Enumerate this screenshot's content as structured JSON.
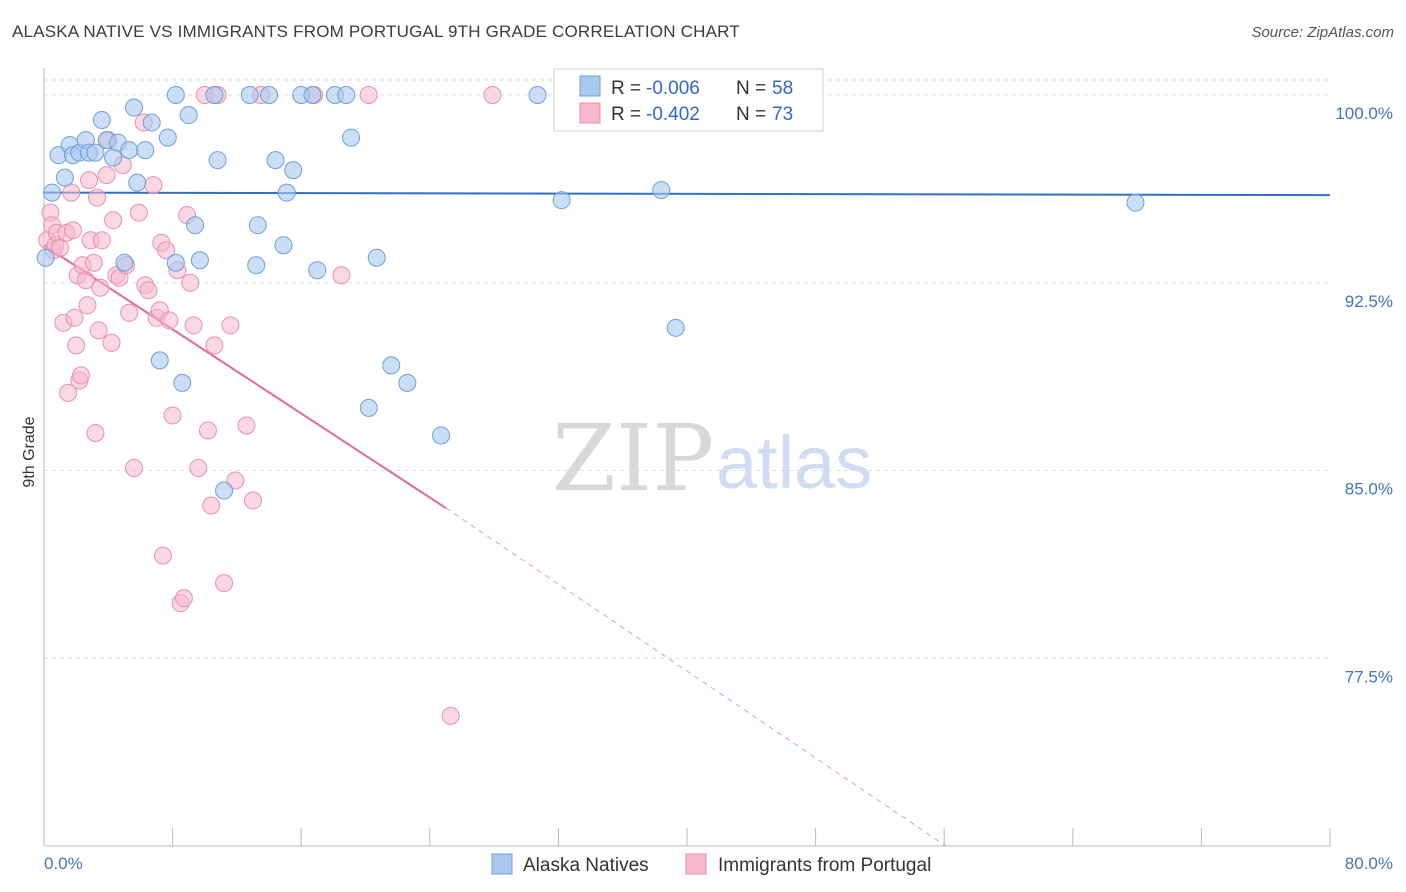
{
  "header": {
    "title": "ALASKA NATIVE VS IMMIGRANTS FROM PORTUGAL 9TH GRADE CORRELATION CHART",
    "source": "Source: ZipAtlas.com"
  },
  "watermark": {
    "zip": "ZIP",
    "atlas": "atlas"
  },
  "stats_legend": [
    {
      "r_label": "R = ",
      "r_value": "-0.006",
      "n_label": "N = ",
      "n_value": "58"
    },
    {
      "r_label": "R = ",
      "r_value": "-0.402",
      "n_label": "N = ",
      "n_value": "73"
    }
  ],
  "chart_data": {
    "type": "scatter",
    "ylabel": "9th Grade",
    "xlabel": "",
    "xlim": [
      0,
      80
    ],
    "ylim": [
      70,
      100.6
    ],
    "x_tick_labels": [
      "0.0%",
      "80.0%"
    ],
    "y_ticks": [
      77.5,
      85.0,
      92.5,
      100.0
    ],
    "y_tick_labels": [
      "77.5%",
      "85.0%",
      "92.5%",
      "100.0%"
    ],
    "grid": true,
    "legend_position": "bottom-center",
    "colors": {
      "blue_fill": "#aac8f0",
      "blue_stroke": "#6f9fd8",
      "blue_line": "#2f6fcc",
      "pink_fill": "#f6b8cc",
      "pink_stroke": "#e891ad",
      "pink_line": "#e46a97"
    },
    "series": [
      {
        "name": "Alaska Natives",
        "color": "#aac8f0",
        "trend": {
          "x": [
            0,
            80
          ],
          "y": [
            96.1,
            96.0
          ]
        },
        "points": [
          [
            0.1,
            93.5
          ],
          [
            0.5,
            96.1
          ],
          [
            0.9,
            97.6
          ],
          [
            1.3,
            96.7
          ],
          [
            1.6,
            98.0
          ],
          [
            1.8,
            97.6
          ],
          [
            2.2,
            97.7
          ],
          [
            2.6,
            98.2
          ],
          [
            2.8,
            97.7
          ],
          [
            3.2,
            97.7
          ],
          [
            3.6,
            99.0
          ],
          [
            3.9,
            98.2
          ],
          [
            4.3,
            97.5
          ],
          [
            4.6,
            98.1
          ],
          [
            5.0,
            93.3
          ],
          [
            5.3,
            97.8
          ],
          [
            5.6,
            99.5
          ],
          [
            5.8,
            96.5
          ],
          [
            6.3,
            97.8
          ],
          [
            6.7,
            98.9
          ],
          [
            7.2,
            89.4
          ],
          [
            7.7,
            98.3
          ],
          [
            8.2,
            100.0
          ],
          [
            8.2,
            93.3
          ],
          [
            8.6,
            88.5
          ],
          [
            9.0,
            99.2
          ],
          [
            9.4,
            94.8
          ],
          [
            9.7,
            93.4
          ],
          [
            10.6,
            100.0
          ],
          [
            10.8,
            97.4
          ],
          [
            11.2,
            84.2
          ],
          [
            12.8,
            100.0
          ],
          [
            13.2,
            93.2
          ],
          [
            13.3,
            94.8
          ],
          [
            14.0,
            100.0
          ],
          [
            14.4,
            97.4
          ],
          [
            14.9,
            94.0
          ],
          [
            15.1,
            96.1
          ],
          [
            15.5,
            97.0
          ],
          [
            16.0,
            100.0
          ],
          [
            16.7,
            100.0
          ],
          [
            17.0,
            93.0
          ],
          [
            18.1,
            100.0
          ],
          [
            18.8,
            100.0
          ],
          [
            19.1,
            98.3
          ],
          [
            20.2,
            87.5
          ],
          [
            20.7,
            93.5
          ],
          [
            21.6,
            89.2
          ],
          [
            22.6,
            88.5
          ],
          [
            24.7,
            86.4
          ],
          [
            30.7,
            100.0
          ],
          [
            32.2,
            95.8
          ],
          [
            38.0,
            100.0
          ],
          [
            38.4,
            96.2
          ],
          [
            39.3,
            90.7
          ],
          [
            41.5,
            100.0
          ],
          [
            44.4,
            100.0
          ],
          [
            67.9,
            95.7
          ]
        ]
      },
      {
        "name": "Immigrants from Portugal",
        "color": "#f6b8cc",
        "trend": {
          "x": [
            0,
            25
          ],
          "y": [
            94.0,
            83.5
          ]
        },
        "trend_dashed": {
          "x": [
            25,
            56.1
          ],
          "y": [
            83.5,
            70.0
          ]
        },
        "points": [
          [
            0.2,
            94.2
          ],
          [
            0.4,
            95.3
          ],
          [
            0.5,
            94.8
          ],
          [
            0.6,
            93.8
          ],
          [
            0.7,
            94.0
          ],
          [
            0.8,
            94.5
          ],
          [
            1.0,
            93.9
          ],
          [
            1.2,
            90.9
          ],
          [
            1.4,
            94.5
          ],
          [
            1.5,
            88.1
          ],
          [
            1.7,
            96.1
          ],
          [
            1.8,
            94.6
          ],
          [
            1.9,
            91.1
          ],
          [
            2.0,
            90.0
          ],
          [
            2.1,
            92.8
          ],
          [
            2.2,
            88.6
          ],
          [
            2.3,
            88.8
          ],
          [
            2.4,
            93.2
          ],
          [
            2.6,
            92.6
          ],
          [
            2.7,
            91.6
          ],
          [
            2.8,
            96.6
          ],
          [
            2.9,
            94.2
          ],
          [
            3.1,
            93.3
          ],
          [
            3.2,
            86.5
          ],
          [
            3.3,
            95.9
          ],
          [
            3.4,
            90.6
          ],
          [
            3.5,
            92.3
          ],
          [
            3.6,
            94.2
          ],
          [
            3.9,
            96.8
          ],
          [
            4.0,
            98.2
          ],
          [
            4.2,
            90.1
          ],
          [
            4.3,
            95.0
          ],
          [
            4.5,
            92.8
          ],
          [
            4.7,
            92.7
          ],
          [
            4.9,
            97.2
          ],
          [
            5.1,
            93.2
          ],
          [
            5.3,
            91.3
          ],
          [
            5.6,
            85.1
          ],
          [
            5.9,
            95.3
          ],
          [
            6.2,
            98.9
          ],
          [
            6.3,
            92.4
          ],
          [
            6.5,
            92.2
          ],
          [
            6.8,
            96.4
          ],
          [
            7.0,
            91.1
          ],
          [
            7.2,
            91.4
          ],
          [
            7.3,
            94.1
          ],
          [
            7.4,
            81.6
          ],
          [
            7.6,
            93.8
          ],
          [
            7.8,
            91.0
          ],
          [
            8.0,
            87.2
          ],
          [
            8.3,
            93.0
          ],
          [
            8.5,
            79.7
          ],
          [
            8.7,
            79.9
          ],
          [
            8.9,
            95.2
          ],
          [
            9.1,
            92.5
          ],
          [
            9.3,
            90.8
          ],
          [
            9.6,
            85.1
          ],
          [
            10.0,
            100.0
          ],
          [
            10.2,
            86.6
          ],
          [
            10.4,
            83.6
          ],
          [
            10.6,
            90.0
          ],
          [
            10.8,
            100.0
          ],
          [
            11.2,
            80.5
          ],
          [
            11.6,
            90.8
          ],
          [
            11.9,
            84.6
          ],
          [
            12.6,
            86.8
          ],
          [
            13.0,
            83.8
          ],
          [
            13.5,
            100.0
          ],
          [
            16.8,
            100.0
          ],
          [
            18.5,
            92.8
          ],
          [
            20.2,
            100.0
          ],
          [
            25.3,
            75.2
          ],
          [
            27.9,
            100.0
          ]
        ]
      }
    ]
  }
}
